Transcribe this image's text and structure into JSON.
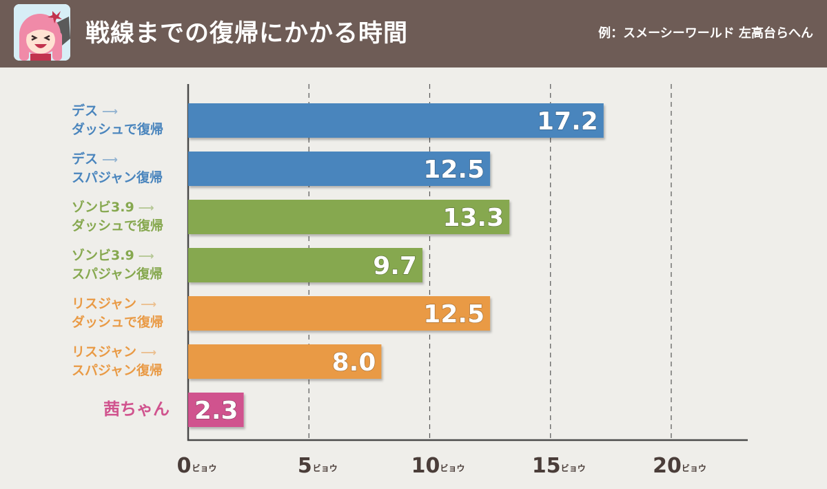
{
  "header": {
    "title": "戦線までの復帰にかかる時間",
    "note": "例：スメーシーワールド 左高台らへん"
  },
  "colors": {
    "header_bg": "#6e5c56",
    "background": "#efeeea",
    "blue": "#4a85bd",
    "green": "#86a84f",
    "orange": "#e99a45",
    "pink": "#d0538e",
    "axis": "#4a4a4a"
  },
  "chart_data": {
    "type": "bar",
    "orientation": "horizontal",
    "xlim": [
      0,
      23
    ],
    "x_ticks": [
      {
        "value": 0,
        "label": "0",
        "unit": "ビョウ"
      },
      {
        "value": 5,
        "label": "5",
        "unit": "ビョウ"
      },
      {
        "value": 10,
        "label": "10",
        "unit": "ビョウ"
      },
      {
        "value": 15,
        "label": "15",
        "unit": "ビョウ"
      },
      {
        "value": 20,
        "label": "20",
        "unit": "ビョウ"
      }
    ],
    "grid": "vertical dashed",
    "categories": [
      {
        "lines": [
          "デス",
          "ダッシュで復帰"
        ],
        "arrow": true,
        "value": 17.2,
        "value_label": "17.2",
        "color": "#4a85bd",
        "label_color": "#4a85bd"
      },
      {
        "lines": [
          "デス",
          "スパジャン復帰"
        ],
        "arrow": true,
        "value": 12.5,
        "value_label": "12.5",
        "color": "#4a85bd",
        "label_color": "#4a85bd"
      },
      {
        "lines": [
          "ゾンビ3.9",
          "ダッシュで復帰"
        ],
        "arrow": true,
        "value": 13.3,
        "value_label": "13.3",
        "color": "#86a84f",
        "label_color": "#86a84f"
      },
      {
        "lines": [
          "ゾンビ3.9",
          "スパジャン復帰"
        ],
        "arrow": true,
        "value": 9.7,
        "value_label": "9.7",
        "color": "#86a84f",
        "label_color": "#86a84f"
      },
      {
        "lines": [
          "リスジャン",
          "ダッシュで復帰"
        ],
        "arrow": true,
        "value": 12.5,
        "value_label": "12.5",
        "color": "#e99a45",
        "label_color": "#e99a45"
      },
      {
        "lines": [
          "リスジャン",
          "スパジャン復帰"
        ],
        "arrow": true,
        "value": 8.0,
        "value_label": "8.0",
        "color": "#e99a45",
        "label_color": "#e99a45"
      },
      {
        "lines": [
          "茜ちゃん"
        ],
        "arrow": false,
        "value": 2.3,
        "value_label": "2.3",
        "color": "#d0538e",
        "label_color": "#d0538e"
      }
    ]
  }
}
